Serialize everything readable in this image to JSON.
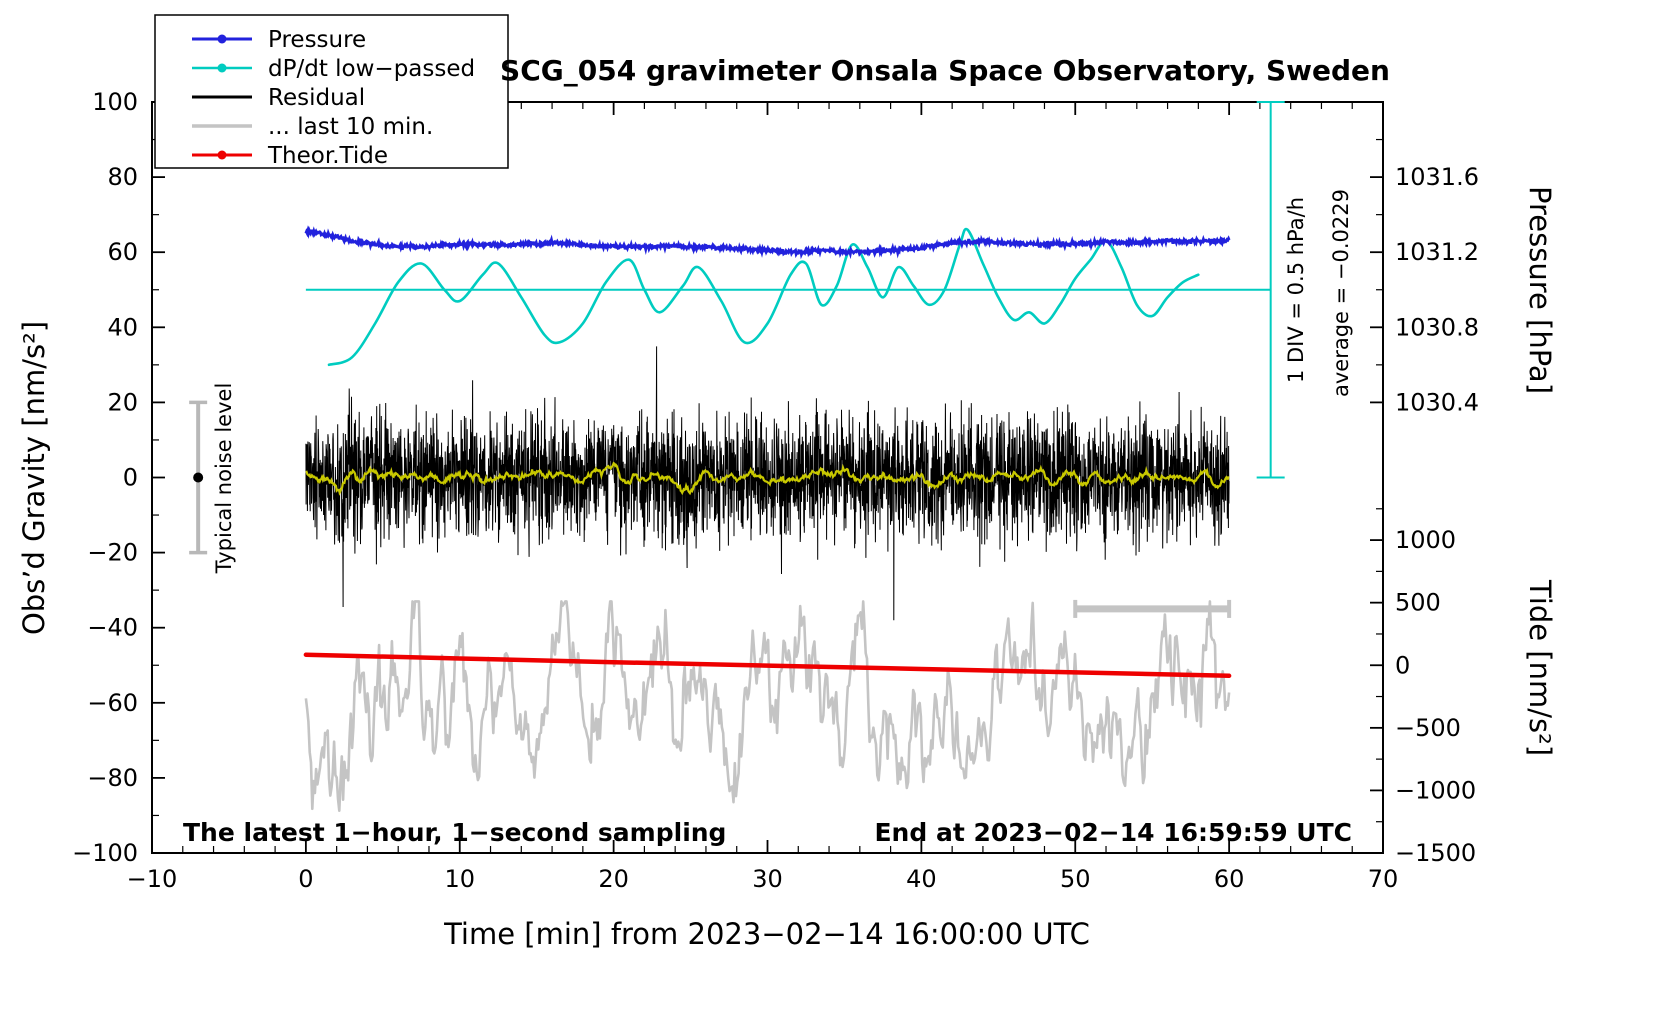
{
  "title": "SCG_054 gravimeter Onsala Space Observatory, Sweden",
  "axes": {
    "x": {
      "label": "Time [min] from 2023−02−14 16:00:00 UTC",
      "min": -10,
      "max": 70,
      "major_ticks": [
        -10,
        0,
        10,
        20,
        30,
        40,
        50,
        60,
        70
      ],
      "minor_step": 2
    },
    "y_left": {
      "label": "Obs’d Gravity [nm/s²]",
      "min": -100,
      "max": 100,
      "major_ticks": [
        -100,
        -80,
        -60,
        -40,
        -20,
        0,
        20,
        40,
        60,
        80,
        100
      ],
      "minor_step": 10
    },
    "y_pressure": {
      "label": "Pressure [hPa]",
      "ticks": [
        {
          "value": "1031.6",
          "y": 80
        },
        {
          "value": "1031.2",
          "y": 60
        },
        {
          "value": "1030.8",
          "y": 40
        },
        {
          "value": "1030.4",
          "y": 20
        }
      ],
      "minor_y": [
        90,
        70,
        50,
        30
      ]
    },
    "y_tide": {
      "label": "Tide [nm/s²]",
      "ticks": [
        {
          "value": "1000",
          "y": -16.67
        },
        {
          "value": "500",
          "y": -33.33
        },
        {
          "value": "0",
          "y": -50
        },
        {
          "value": "−500",
          "y": -66.67
        },
        {
          "value": "−1000",
          "y": -83.33
        },
        {
          "value": "−1500",
          "y": -100
        }
      ],
      "minor_y": [
        -8.33,
        -25,
        -41.67,
        -58.33,
        -75,
        -91.67
      ]
    }
  },
  "legend": {
    "items": [
      {
        "label": "Pressure",
        "color": "#2222dd",
        "marker": "line-dot",
        "width": 3
      },
      {
        "label": "dP/dt low−passed",
        "color": "#00ccc0",
        "marker": "line-dot",
        "width": 2.5
      },
      {
        "label": "Residual",
        "color": "#000000",
        "marker": "line",
        "width": 3
      },
      {
        "label": "... last 10 min.",
        "color": "#c4c4c4",
        "marker": "line",
        "width": 3.5
      },
      {
        "label": "Theor.Tide",
        "color": "#ee0000",
        "marker": "line-dot",
        "width": 3
      }
    ]
  },
  "annotations": {
    "noise_level": {
      "label": "Typical noise level",
      "x": -7,
      "y_from": -20,
      "y_to": 20,
      "dot_y": 0
    },
    "div_scale": {
      "label": "1 DIV = 0.5 hPa/h",
      "x": 62.7,
      "y_from": 0,
      "y_to": 100
    },
    "average": {
      "label": "average = −0.0229"
    },
    "reference_line": {
      "y": 50,
      "x_from": 0,
      "x_to": 62.7
    },
    "last10_scale_bar": {
      "x_from": 50,
      "x_to": 60,
      "y": -35
    },
    "sampling_note": "The latest 1−hour, 1−second sampling",
    "end_note": "End at 2023−02−14 16:59:59 UTC"
  },
  "chart_data": {
    "type": "line",
    "title": "SCG_054 gravimeter Onsala Space Observatory, Sweden",
    "xlabel": "Time [min] from 2023−02−14 16:00:00 UTC",
    "ylabel": "Obs’d Gravity [nm/s²]",
    "ylabel_right_top": "Pressure [hPa]",
    "ylabel_right_bottom": "Tide [nm/s²]",
    "xlim": [
      -10,
      70
    ],
    "ylim_left": [
      -100,
      100
    ],
    "pressure_mapping": "hPa = 1031.0 + (y_left - 50) * 0.02",
    "tide_mapping": "tide_nm_s2 = (y_left + 50) * 30",
    "grid": false,
    "legend_position": "top-left",
    "series": [
      {
        "name": "Pressure",
        "color": "#2222dd",
        "axis": "pressure-right",
        "x_start": 0,
        "x_step": 1,
        "y": [
          65.5,
          65.0,
          64.0,
          63.0,
          62.3,
          61.8,
          61.5,
          61.4,
          61.5,
          61.8,
          62.0,
          62.0,
          62.0,
          62.0,
          62.0,
          62.3,
          62.6,
          62.4,
          62.0,
          61.8,
          61.6,
          61.5,
          61.5,
          61.6,
          61.6,
          61.5,
          61.4,
          61.2,
          61.0,
          60.7,
          60.4,
          60.2,
          60.0,
          60.3,
          60.4,
          60.0,
          60.0,
          60.3,
          60.6,
          60.8,
          61.2,
          61.8,
          62.5,
          62.8,
          63.0,
          62.6,
          62.3,
          62.2,
          62.1,
          62.2,
          62.2,
          62.4,
          62.7,
          62.5,
          62.6,
          62.8,
          63.0,
          62.9,
          63.0,
          62.9,
          63.2
        ],
        "hPa_approx": [
          1031.31,
          1031.3,
          1031.28,
          1031.26,
          1031.25,
          1031.24,
          1031.23,
          1031.23,
          1031.23,
          1031.24,
          1031.24,
          1031.24,
          1031.24,
          1031.24,
          1031.24,
          1031.25,
          1031.25,
          1031.25,
          1031.24,
          1031.24,
          1031.23,
          1031.23,
          1031.23,
          1031.23,
          1031.23,
          1031.23,
          1031.23,
          1031.22,
          1031.22,
          1031.21,
          1031.21,
          1031.2,
          1031.2,
          1031.21,
          1031.21,
          1031.2,
          1031.2,
          1031.21,
          1031.21,
          1031.22,
          1031.22,
          1031.24,
          1031.25,
          1031.26,
          1031.26,
          1031.25,
          1031.25,
          1031.24,
          1031.24,
          1031.24,
          1031.24,
          1031.25,
          1031.25,
          1031.25,
          1031.25,
          1031.26,
          1031.26,
          1031.26,
          1031.26,
          1031.26,
          1031.26
        ],
        "jitter": 0.28
      },
      {
        "name": "dP/dt low-passed",
        "color": "#00ccc0",
        "reference_level_y": 50,
        "x": [
          1.5,
          3,
          4.5,
          6,
          7.5,
          9,
          10,
          11.5,
          12.5,
          14,
          15.5,
          16.5,
          18,
          19.5,
          21,
          22,
          23,
          24.5,
          25.5,
          27,
          28.5,
          30,
          31.5,
          32.5,
          33.5,
          34.5,
          35.5,
          36.5,
          37.5,
          38.5,
          39.5,
          40.5,
          41.5,
          42.5,
          43,
          44,
          45,
          46,
          47,
          48,
          49,
          50,
          51,
          52,
          53,
          54,
          55,
          56,
          57,
          58
        ],
        "y": [
          30,
          32,
          41,
          52,
          57,
          50,
          47,
          54,
          57,
          48,
          38,
          36,
          41,
          52,
          58,
          50,
          44,
          51,
          56,
          47,
          36,
          41,
          54,
          57,
          46,
          51,
          62,
          56,
          48,
          56,
          51,
          46,
          50,
          62,
          66,
          57,
          48,
          42,
          44,
          41,
          46,
          53,
          58,
          63,
          56,
          46,
          43,
          48,
          52,
          54
        ]
      },
      {
        "name": "Residual",
        "color": "#000000",
        "stochastic": {
          "n": 3600,
          "x_from": 0,
          "x_to": 60,
          "mean": 0,
          "std": 8,
          "spike_prob": 0.015,
          "spike_gain": 2.3,
          "clip": 38,
          "seed": 1234
        },
        "description": "1 Hz residual gravity, zero-mean noise band roughly ±15 nm/s² with spikes to ±38"
      },
      {
        "name": "Residual smoothed",
        "color": "#c8c800",
        "derived": "moving average of Residual, ~25 s window"
      },
      {
        "name": "... last 10 min.",
        "color": "#c4c4c4",
        "stochastic": {
          "n": 720,
          "x_from": 0,
          "x_to": 60,
          "mean": -61,
          "std": 12,
          "ar": 0.88,
          "clip_low": -90,
          "clip_high": -33,
          "seed": 77
        },
        "description": "magnified last-10-minute residual trace centered near y = −61"
      },
      {
        "name": "Theor.Tide",
        "color": "#ee0000",
        "axis": "tide-right",
        "x": [
          0,
          10,
          20,
          30,
          40,
          50,
          60
        ],
        "y": [
          -47.2,
          -48.2,
          -49.2,
          -50.1,
          -51.0,
          -51.9,
          -52.8
        ],
        "tide_nm_s2": [
          84,
          54,
          24,
          -3,
          -30,
          -57,
          -84
        ]
      }
    ]
  }
}
